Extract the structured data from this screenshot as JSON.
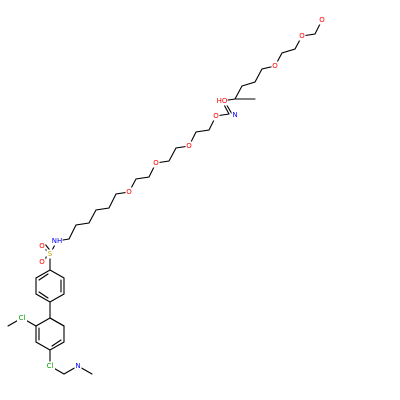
{
  "figure": {
    "kind": "skeletal structural formula",
    "colors": {
      "bond": "#000000",
      "oxygen": "#ff0000",
      "nitrogen": "#0000ff",
      "sulfur": "#b8a000",
      "chlorine": "#00a000",
      "carbon_label": "#000000"
    }
  },
  "atoms": {
    "o_terminal": "O",
    "o_peg_a": "O",
    "o_peg_b": "O",
    "ho": "HO",
    "n_imine": "N",
    "o_peg_1": "O",
    "o_peg_2": "O",
    "o_peg_3": "O",
    "o_peg_4": "O",
    "nh": "NH",
    "s": "S",
    "o_s_top": "O",
    "o_s_bottom": "O",
    "cl_top": "Cl",
    "cl_bottom": "Cl",
    "n_ring": "N"
  }
}
